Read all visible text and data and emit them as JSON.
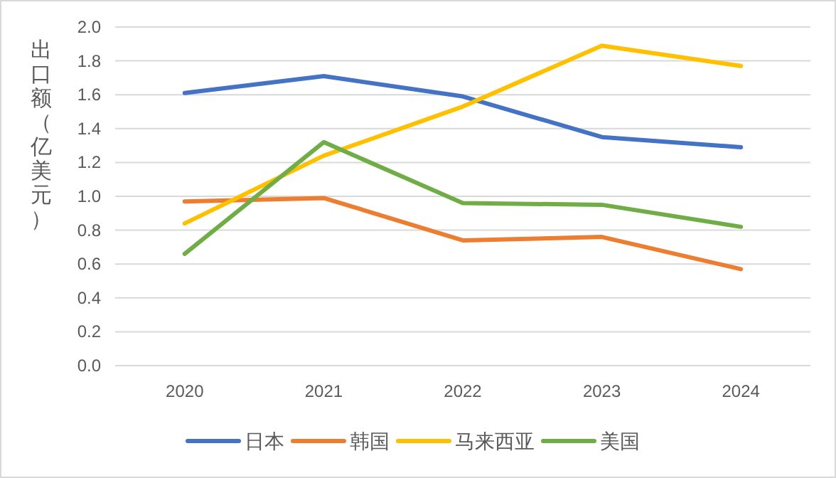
{
  "chart_data": {
    "type": "line",
    "ylabel": "出口额（亿美元）",
    "categories": [
      "2020",
      "2021",
      "2022",
      "2023",
      "2024"
    ],
    "series": [
      {
        "name": "日本",
        "color": "#4472c4",
        "values": [
          1.61,
          1.71,
          1.59,
          1.35,
          1.29
        ]
      },
      {
        "name": "韩国",
        "color": "#ed7d31",
        "values": [
          0.97,
          0.99,
          0.74,
          0.76,
          0.57
        ]
      },
      {
        "name": "马来西亚",
        "color": "#ffc000",
        "values": [
          0.84,
          1.24,
          1.53,
          1.89,
          1.77
        ]
      },
      {
        "name": "美国",
        "color": "#70ad47",
        "values": [
          0.66,
          1.32,
          0.96,
          0.95,
          0.82
        ]
      }
    ],
    "ylim": [
      0,
      2.0
    ],
    "yticks": [
      {
        "value": 0,
        "label": "0.0"
      },
      {
        "value": 0.2,
        "label": "0.2"
      },
      {
        "value": 0.4,
        "label": "0.4"
      },
      {
        "value": 0.6,
        "label": "0.6"
      },
      {
        "value": 0.8,
        "label": "0.8"
      },
      {
        "value": 1.0,
        "label": "1.0"
      },
      {
        "value": 1.2,
        "label": "1.2"
      },
      {
        "value": 1.4,
        "label": "1.4"
      },
      {
        "value": 1.6,
        "label": "1.6"
      },
      {
        "value": 1.8,
        "label": "1.8"
      },
      {
        "value": 2.0,
        "label": "2.0"
      }
    ],
    "grid": "y",
    "legend": "bottom",
    "marker": "none",
    "line_style": "solid"
  }
}
